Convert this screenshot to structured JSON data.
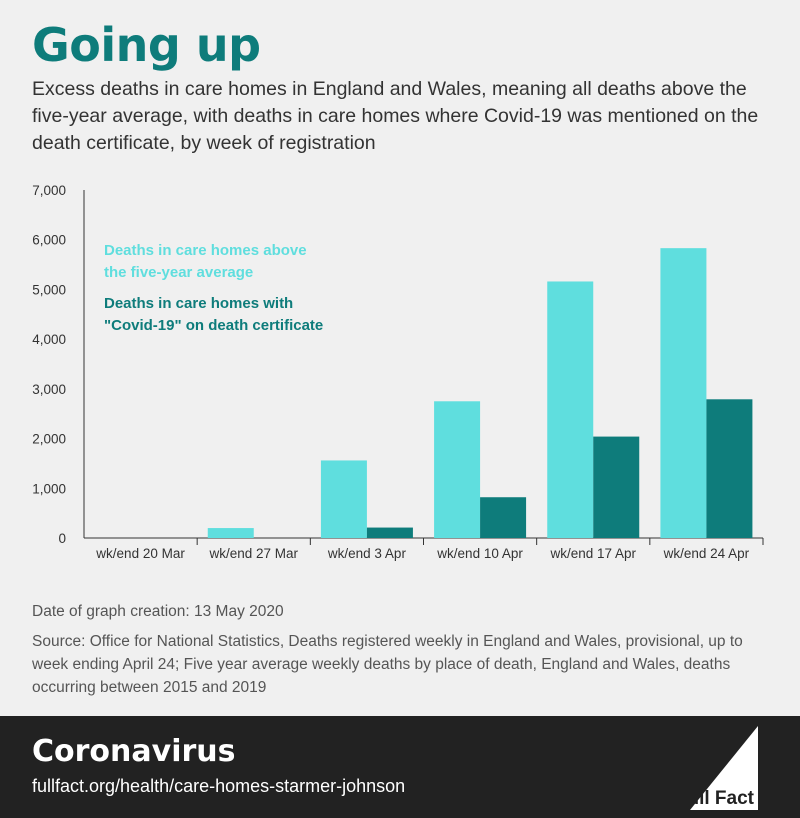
{
  "header": {
    "title": "Going up",
    "subtitle": "Excess deaths in care homes in England and Wales, meaning all deaths above the five-year average, with deaths in care homes where Covid-19 was mentioned on the death certificate, by week of registration"
  },
  "chart_data": {
    "type": "bar",
    "categories": [
      "wk/end 20 Mar",
      "wk/end 27 Mar",
      "wk/end 3 Apr",
      "wk/end 10 Apr",
      "wk/end 17 Apr",
      "wk/end 24 Apr"
    ],
    "series": [
      {
        "name": "Deaths in care homes above the five-year average",
        "legend_lines": [
          "Deaths in care homes above",
          "the five-year average"
        ],
        "color": "#5fdede",
        "values": [
          0,
          200,
          1560,
          2750,
          5160,
          5830
        ]
      },
      {
        "name": "Deaths in care homes with \"Covid-19\" on death certificate",
        "legend_lines": [
          "Deaths in care homes with",
          "\"Covid-19\" on death certificate"
        ],
        "color": "#0e7c7b",
        "values": [
          0,
          0,
          210,
          820,
          2040,
          2790
        ]
      }
    ],
    "ylim": [
      0,
      7000
    ],
    "yticks": [
      0,
      1000,
      2000,
      3000,
      4000,
      5000,
      6000,
      7000
    ],
    "ytick_labels": [
      "0",
      "1,000",
      "2,000",
      "3,000",
      "4,000",
      "5,000",
      "6,000",
      "7,000"
    ],
    "grid": false,
    "legend_placement": "top-left"
  },
  "notes": {
    "date": "Date of graph creation: 13 May 2020",
    "source": "Source: Office for National Statistics, Deaths registered weekly in England and Wales, provisional, up to week ending April 24; Five year average weekly deaths by place of death, England and Wales, deaths occurring between 2015 and 2019"
  },
  "footer": {
    "title": "Coronavirus",
    "url": "fullfact.org/health/care-homes-starmer-johnson",
    "logo_text": "Full Fact"
  }
}
